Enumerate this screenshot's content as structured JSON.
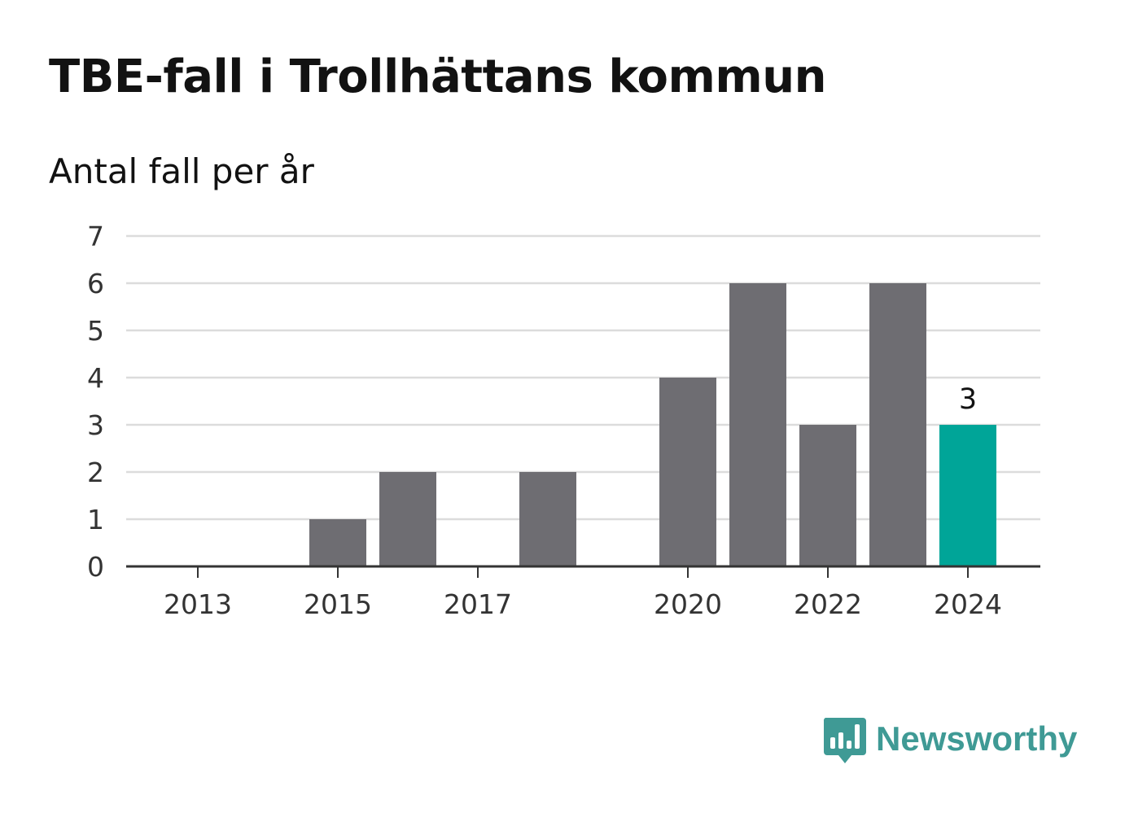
{
  "title": "TBE-fall i Trollhättans kommun",
  "subtitle": "Antal fall per år",
  "brand": {
    "name": "Newsworthy",
    "icon": "newsworthy-logo-icon",
    "color": "#3f9a95"
  },
  "colors": {
    "bar": "#6e6d72",
    "highlight": "#00a598",
    "grid": "#dcdcdc",
    "axis": "#333333",
    "text": "#333333"
  },
  "chart_data": {
    "type": "bar",
    "categories": [
      2013,
      2014,
      2015,
      2016,
      2017,
      2018,
      2019,
      2020,
      2021,
      2022,
      2023,
      2024
    ],
    "values": [
      0,
      0,
      1,
      2,
      0,
      2,
      0,
      4,
      6,
      3,
      6,
      3
    ],
    "highlight_category": 2024,
    "highlight_label": "3",
    "x_tick_labels": [
      2013,
      2015,
      2017,
      2020,
      2022,
      2024
    ],
    "y_ticks": [
      0,
      1,
      2,
      3,
      4,
      5,
      6,
      7
    ],
    "ylim": [
      0,
      7
    ],
    "grid": true,
    "legend": "none"
  }
}
